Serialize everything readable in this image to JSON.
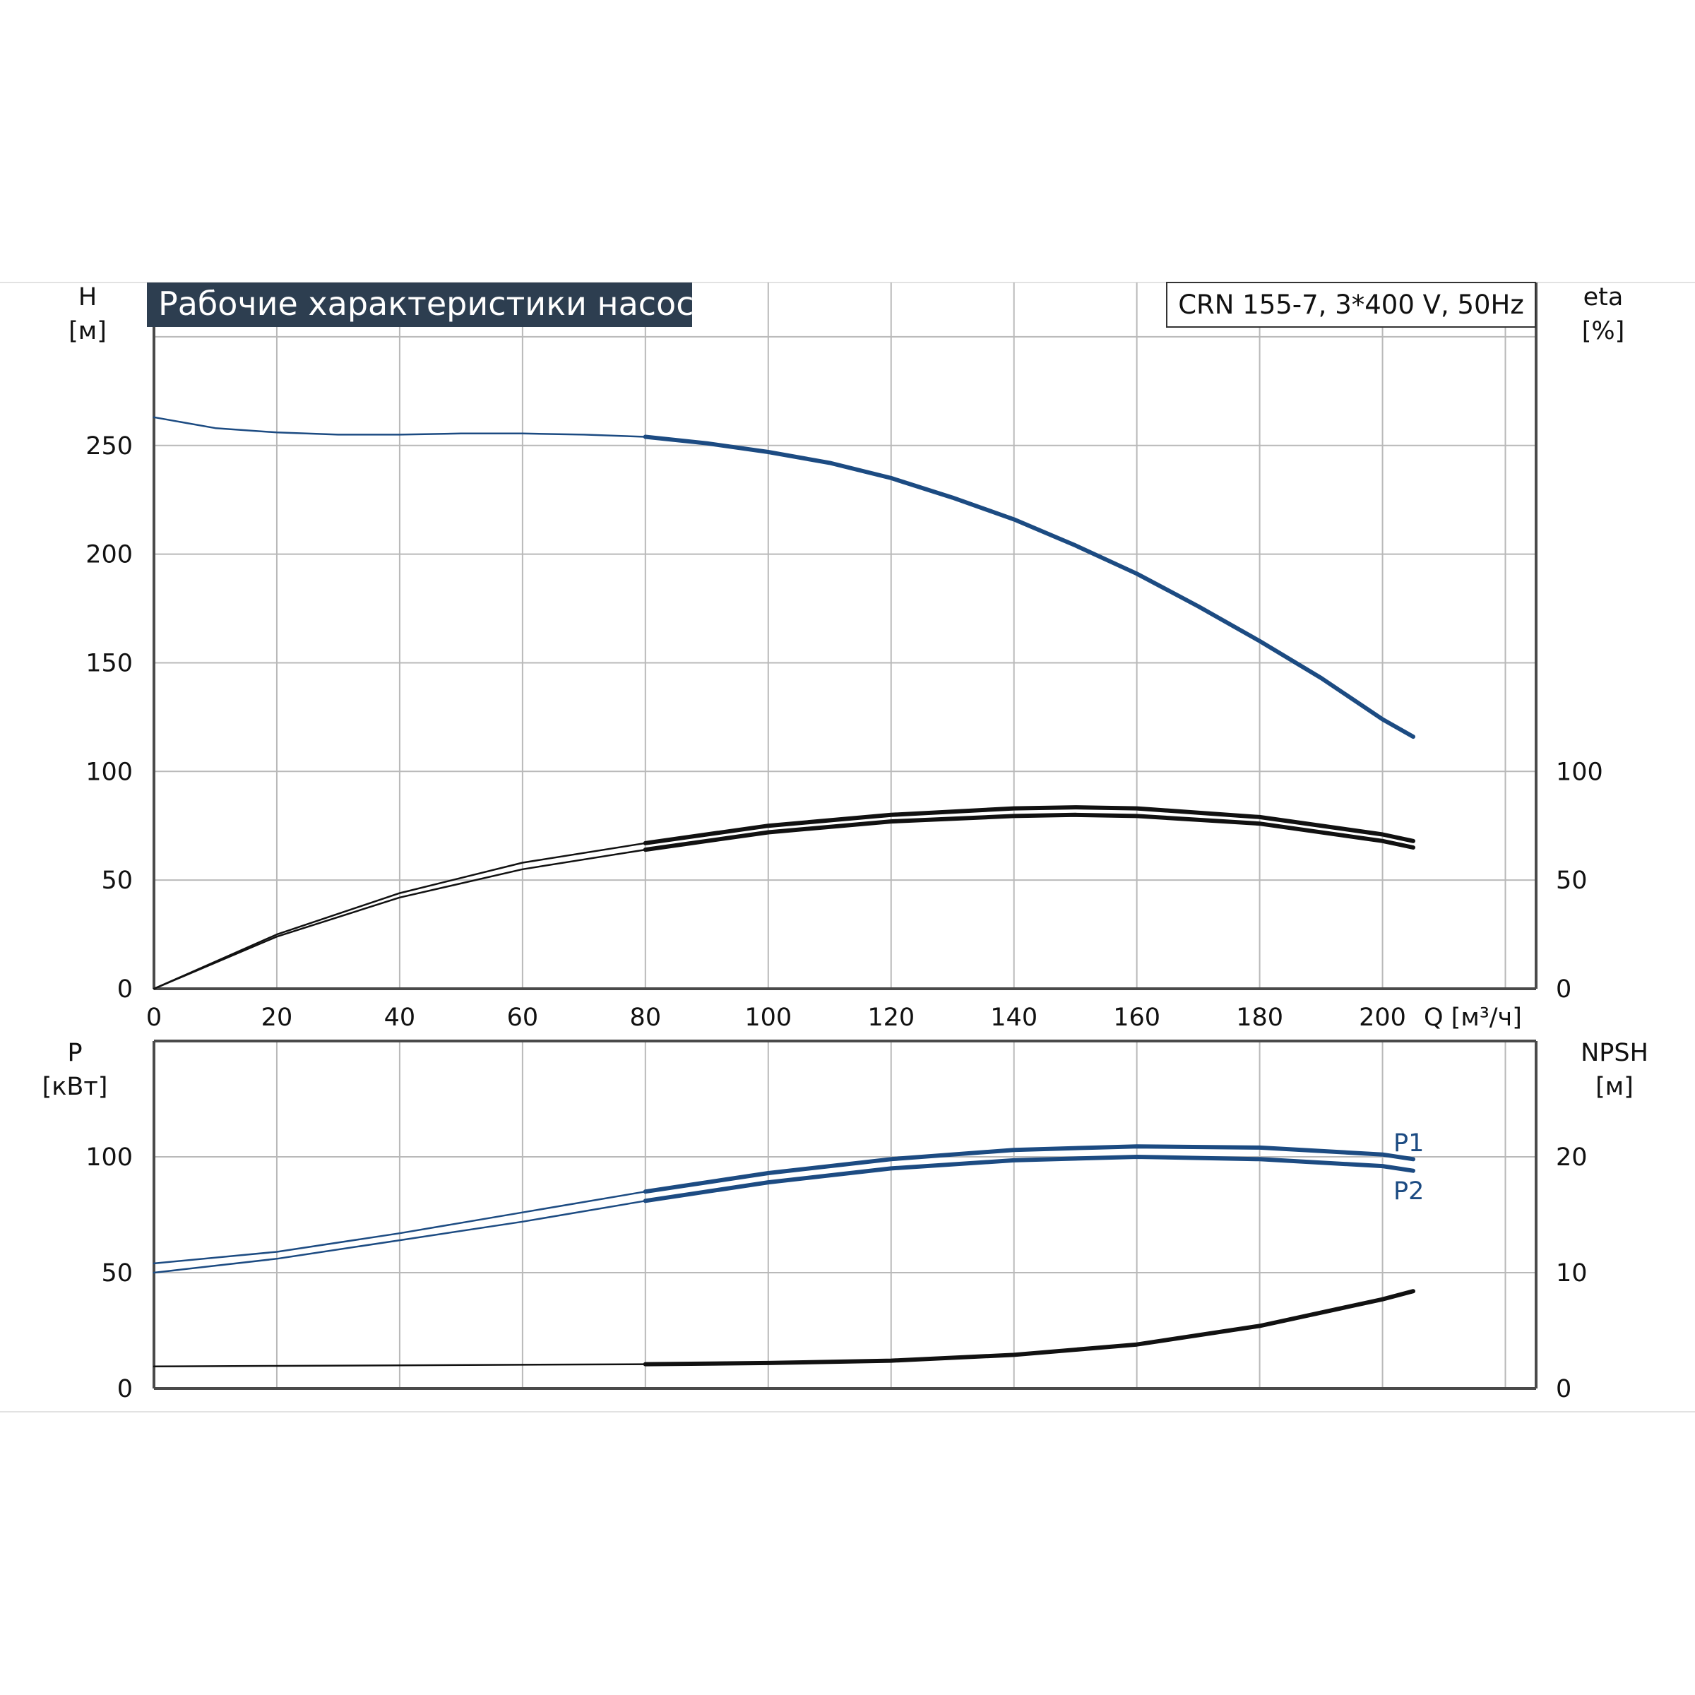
{
  "title": "Рабочие характеристики насоса",
  "model": "CRN 155-7, 3*400 V, 50Hz",
  "colors": {
    "blue": "#1c4b82",
    "black": "#111111",
    "title_bg": "#2d3e50",
    "grid": "#b9b9b9"
  },
  "chart_data": [
    {
      "type": "line",
      "panel": "top",
      "x_axis": {
        "label": "Q [м³/ч]",
        "ticks": [
          0,
          20,
          40,
          60,
          80,
          100,
          120,
          140,
          160,
          180,
          200
        ],
        "range": [
          0,
          225
        ]
      },
      "y_left": {
        "name": "H",
        "unit": "[м]",
        "ticks": [
          0,
          50,
          100,
          150,
          200,
          250
        ],
        "range": [
          0,
          325
        ]
      },
      "y_right": {
        "name": "eta",
        "unit": "[%]",
        "ticks": [
          0,
          50,
          100
        ],
        "range": [
          0,
          325
        ]
      },
      "grid": true,
      "series": [
        {
          "axis": "left",
          "color": "#1c4b82",
          "x": [
            0,
            10,
            20,
            30,
            40,
            50,
            60,
            70,
            80,
            90,
            100,
            110,
            120,
            130,
            140,
            150,
            160,
            170,
            180,
            190,
            200,
            205
          ],
          "y": [
            263,
            258,
            256,
            255,
            255,
            255.5,
            255.5,
            255,
            254,
            251,
            247,
            242,
            235,
            226,
            216,
            204,
            191,
            176,
            160,
            143,
            124,
            116
          ]
        },
        {
          "axis": "right",
          "color": "#111111",
          "x": [
            0,
            20,
            40,
            60,
            80,
            100,
            120,
            140,
            150,
            160,
            180,
            200,
            205
          ],
          "y": [
            0,
            25,
            44,
            58,
            67,
            75,
            80,
            83,
            83.5,
            83,
            79,
            71,
            68
          ]
        },
        {
          "axis": "right",
          "color": "#111111",
          "x": [
            0,
            20,
            40,
            60,
            80,
            100,
            120,
            140,
            150,
            160,
            180,
            200,
            205
          ],
          "y": [
            0,
            24,
            42,
            55,
            64,
            72,
            77,
            79.5,
            80,
            79.5,
            76,
            68,
            65
          ]
        }
      ]
    },
    {
      "type": "line",
      "panel": "bottom",
      "x_axis": {
        "ticks": [
          0,
          20,
          40,
          60,
          80,
          100,
          120,
          140,
          160,
          180,
          200
        ],
        "range": [
          0,
          225
        ]
      },
      "y_left": {
        "name": "P",
        "unit": "[кВт]",
        "ticks": [
          0,
          50,
          100
        ],
        "range": [
          0,
          150
        ]
      },
      "y_right": {
        "name": "NPSH",
        "unit": "[м]",
        "ticks": [
          0,
          10,
          20
        ],
        "range": [
          0,
          30
        ]
      },
      "grid": true,
      "series": [
        {
          "name": "P1",
          "axis": "left",
          "color": "#1c4b82",
          "x": [
            0,
            20,
            40,
            60,
            80,
            100,
            120,
            140,
            160,
            180,
            200,
            205
          ],
          "y": [
            54,
            59,
            67,
            76,
            85,
            93,
            99,
            103,
            104.5,
            104,
            101,
            99
          ]
        },
        {
          "name": "P2",
          "axis": "left",
          "color": "#1c4b82",
          "x": [
            0,
            20,
            40,
            60,
            80,
            100,
            120,
            140,
            160,
            180,
            200,
            205
          ],
          "y": [
            50,
            56,
            64,
            72,
            81,
            89,
            95,
            98.5,
            100,
            99,
            96,
            94
          ]
        },
        {
          "axis": "right",
          "color": "#111111",
          "x": [
            0,
            20,
            40,
            60,
            80,
            100,
            120,
            140,
            160,
            180,
            200,
            205
          ],
          "y": [
            1.9,
            1.95,
            2.0,
            2.05,
            2.1,
            2.2,
            2.4,
            2.9,
            3.8,
            5.4,
            7.7,
            8.4
          ]
        }
      ]
    }
  ]
}
